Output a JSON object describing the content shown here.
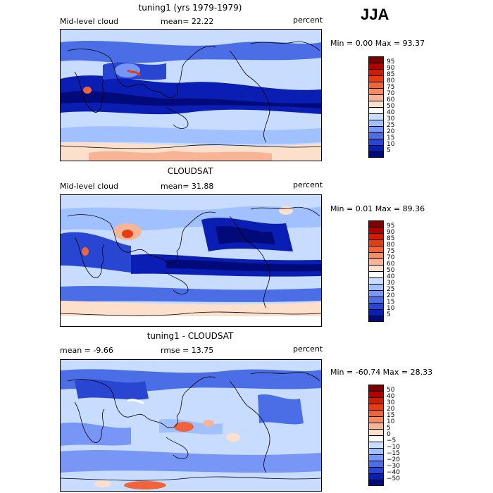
{
  "season": "JJA",
  "panels": [
    {
      "title": "tuning1 (yrs 1979-1979)",
      "left": "Mid-level cloud",
      "center": "mean=  22.22",
      "right": "percent",
      "minmax": "Min =   0.00 Max =  93.37",
      "palette": "abs"
    },
    {
      "title": "CLOUDSAT",
      "left": "Mid-level cloud",
      "center": "mean=  31.88",
      "right": "percent",
      "minmax": "Min =   0.01 Max =  89.36",
      "palette": "abs"
    },
    {
      "title": "tuning1 - CLOUDSAT",
      "left": "mean =   -9.66",
      "center": "rmse =  13.75",
      "right": "percent",
      "minmax": "Min = -60.74 Max =  28.33",
      "palette": "diff"
    }
  ],
  "colorbars": {
    "abs": {
      "labels": [
        "95",
        "90",
        "85",
        "80",
        "75",
        "70",
        "60",
        "50",
        "40",
        "30",
        "25",
        "20",
        "15",
        "10",
        "5"
      ],
      "colors": [
        "#7d0000",
        "#b20000",
        "#d21c00",
        "#e63c14",
        "#f0643c",
        "#f58c64",
        "#f8b496",
        "#fce0cc",
        "#ffffff",
        "#c8dcff",
        "#a0c0ff",
        "#7896f5",
        "#4b6ee6",
        "#2846d2",
        "#0a1eb4",
        "#000a78"
      ]
    },
    "diff": {
      "labels": [
        "50",
        "40",
        "30",
        "20",
        "15",
        "10",
        "5",
        "0",
        "−5",
        "−10",
        "−15",
        "−20",
        "−30",
        "−40",
        "−50"
      ],
      "colors": [
        "#7d0000",
        "#b20000",
        "#d21c00",
        "#e63c14",
        "#f0643c",
        "#f58c64",
        "#f8b496",
        "#fce0cc",
        "#ffffff",
        "#c8dcff",
        "#a0c0ff",
        "#7896f5",
        "#4b6ee6",
        "#2846d2",
        "#0a1eb4",
        "#000a78"
      ]
    }
  }
}
